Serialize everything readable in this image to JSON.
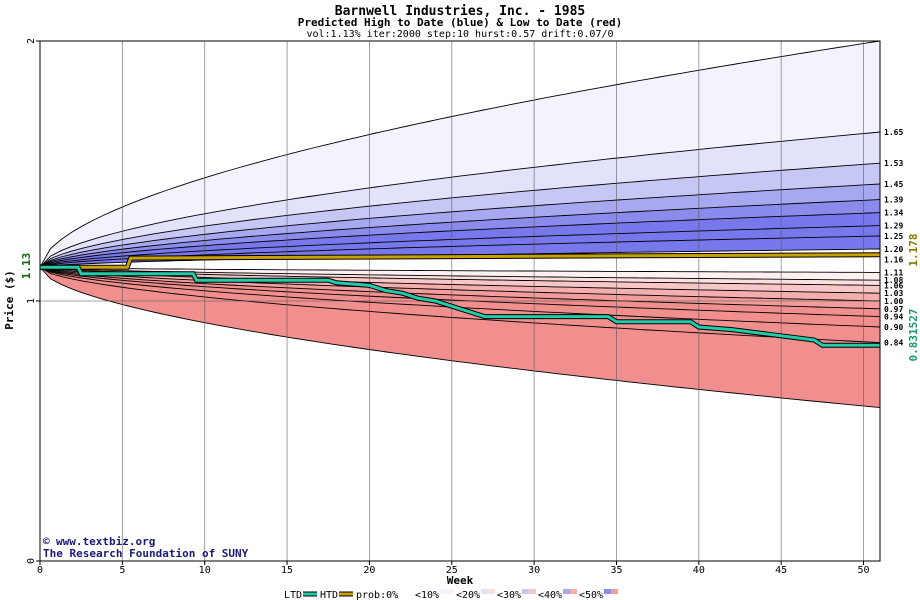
{
  "chart_data": {
    "type": "area",
    "title": "Barnwell Industries, Inc. - 1985",
    "subtitle": "Predicted High to Date (blue) &  Low to Date (red)",
    "params": "vol:1.13% iter:2000 step:10 hurst:0.57 drift:0.07/0",
    "xlabel": "Week",
    "ylabel": "Price ($)",
    "xlim": [
      0,
      51
    ],
    "ylim": [
      0,
      2
    ],
    "x_ticks": [
      "0",
      "5",
      "10",
      "15",
      "20",
      "25",
      "30",
      "35",
      "40",
      "45",
      "50"
    ],
    "y_ticks": [
      "0",
      "1",
      "2"
    ],
    "start_price_label": "1.13",
    "start_price": 1.13,
    "grid": true,
    "colors": {
      "blue_bands": [
        "#f3f3fd",
        "#e2e2fb",
        "#c7c7f6",
        "#a8a8f1",
        "#8b8bee",
        "#7878ec"
      ],
      "red_bands": [
        "#fdf0f0",
        "#fbdede",
        "#f8c6c6",
        "#f5aeae",
        "#f39c9c",
        "#f18e8e"
      ],
      "htd_line": "#c8a000",
      "ltd_line": "#22ccaa",
      "htd_label": "#8b7a00",
      "ltd_label": "#1a9a70"
    },
    "right_labels": [
      "1.65",
      "1.53",
      "1.45",
      "1.39",
      "1.34",
      "1.29",
      "1.25",
      "1.20",
      "1.16",
      "1.11",
      "1.08",
      "1.06",
      "1.03",
      "1.00",
      "0.97",
      "0.94",
      "0.90",
      "0.84"
    ],
    "high_quantiles_end": [
      2.0,
      1.65,
      1.53,
      1.45,
      1.39,
      1.34,
      1.29,
      1.25,
      1.2
    ],
    "low_quantiles_end": [
      1.11,
      1.08,
      1.06,
      1.03,
      1.0,
      0.97,
      0.94,
      0.9,
      0.84,
      0.59
    ],
    "htd_series": {
      "name": "HTD",
      "end_label": "1.178",
      "points": [
        [
          0,
          1.13
        ],
        [
          5.3,
          1.13
        ],
        [
          5.5,
          1.165
        ],
        [
          51,
          1.178
        ]
      ]
    },
    "ltd_series": {
      "name": "LTD",
      "end_label": "0.831527",
      "points": [
        [
          0,
          1.13
        ],
        [
          2.3,
          1.13
        ],
        [
          2.5,
          1.105
        ],
        [
          9.3,
          1.105
        ],
        [
          9.5,
          1.08
        ],
        [
          17.5,
          1.08
        ],
        [
          18,
          1.07
        ],
        [
          20,
          1.06
        ],
        [
          21,
          1.04
        ],
        [
          22,
          1.03
        ],
        [
          23,
          1.01
        ],
        [
          24,
          1.0
        ],
        [
          25,
          0.98
        ],
        [
          26,
          0.96
        ],
        [
          27,
          0.94
        ],
        [
          34.5,
          0.94
        ],
        [
          35,
          0.92
        ],
        [
          39.5,
          0.92
        ],
        [
          40,
          0.9
        ],
        [
          42,
          0.89
        ],
        [
          44.5,
          0.87
        ],
        [
          47,
          0.85
        ],
        [
          47.5,
          0.83
        ],
        [
          51,
          0.83
        ]
      ]
    },
    "legend": {
      "items": [
        "LTD",
        "HTD",
        "prob:0%",
        "<10%",
        "<20%",
        "<30%",
        "<40%",
        "<50%"
      ]
    },
    "watermark": {
      "line1": "www.textbiz.org",
      "line2": "The Research Foundation of SUNY"
    }
  }
}
